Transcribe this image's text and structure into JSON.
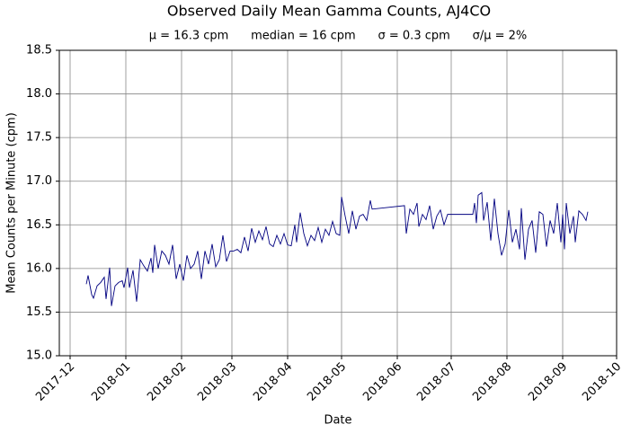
{
  "chart_data": {
    "type": "line",
    "title": "Observed Daily Mean Gamma Counts, AJ4CO",
    "subtitle": "μ = 16.3 cpm      median = 16 cpm      σ = 0.3 cpm      σ/μ = 2%",
    "xlabel": "Date",
    "ylabel": "Mean Counts per Minute (cpm)",
    "color": "#000080",
    "grid": true,
    "xlim": [
      "2017-11-25",
      "2018-10-01"
    ],
    "xticks": [
      "2017-12",
      "2018-01",
      "2018-02",
      "2018-03",
      "2018-04",
      "2018-05",
      "2018-06",
      "2018-07",
      "2018-08",
      "2018-09",
      "2018-10"
    ],
    "ylim": [
      15.0,
      18.5
    ],
    "yticks": [
      {
        "value": 15,
        "label": "15.0"
      },
      15.5,
      {
        "value": 16,
        "label": "16.0"
      },
      16.5,
      {
        "value": 17,
        "label": "17.0"
      },
      17.5,
      {
        "value": 18,
        "label": "18.0"
      },
      18.5
    ],
    "x": [
      "2017-12-10",
      "2017-12-11",
      "2017-12-13",
      "2017-12-14",
      "2017-12-16",
      "2017-12-18",
      "2017-12-20",
      "2017-12-21",
      "2017-12-23",
      "2017-12-24",
      "2017-12-26",
      "2017-12-28",
      "2017-12-30",
      "2017-12-31",
      "2018-01-02",
      "2018-01-03",
      "2018-01-05",
      "2018-01-07",
      "2018-01-09",
      "2018-01-11",
      "2018-01-13",
      "2018-01-15",
      "2018-01-16",
      "2018-01-17",
      "2018-01-19",
      "2018-01-21",
      "2018-01-23",
      "2018-01-25",
      "2018-01-27",
      "2018-01-29",
      "2018-01-31",
      "2018-02-02",
      "2018-02-04",
      "2018-02-06",
      "2018-02-08",
      "2018-02-10",
      "2018-02-12",
      "2018-02-14",
      "2018-02-16",
      "2018-02-18",
      "2018-02-20",
      "2018-02-22",
      "2018-02-24",
      "2018-02-26",
      "2018-02-28",
      "2018-03-02",
      "2018-03-04",
      "2018-03-06",
      "2018-03-08",
      "2018-03-10",
      "2018-03-12",
      "2018-03-14",
      "2018-03-16",
      "2018-03-18",
      "2018-03-20",
      "2018-03-22",
      "2018-03-24",
      "2018-03-26",
      "2018-03-28",
      "2018-03-30",
      "2018-04-01",
      "2018-04-03",
      "2018-04-05",
      "2018-04-06",
      "2018-04-08",
      "2018-04-10",
      "2018-04-12",
      "2018-04-14",
      "2018-04-16",
      "2018-04-18",
      "2018-04-20",
      "2018-04-22",
      "2018-04-24",
      "2018-04-26",
      "2018-04-28",
      "2018-04-30",
      "2018-05-01",
      "2018-05-03",
      "2018-05-05",
      "2018-05-07",
      "2018-05-09",
      "2018-05-11",
      "2018-05-13",
      "2018-05-15",
      "2018-05-17",
      "2018-05-18",
      "2018-06-05",
      "2018-06-06",
      "2018-06-08",
      "2018-06-10",
      "2018-06-12",
      "2018-06-13",
      "2018-06-15",
      "2018-06-17",
      "2018-06-19",
      "2018-06-21",
      "2018-06-23",
      "2018-06-25",
      "2018-06-27",
      "2018-06-29",
      "2018-07-13",
      "2018-07-14",
      "2018-07-15",
      "2018-07-16",
      "2018-07-18",
      "2018-07-19",
      "2018-07-21",
      "2018-07-23",
      "2018-07-25",
      "2018-07-27",
      "2018-07-29",
      "2018-07-31",
      "2018-08-02",
      "2018-08-04",
      "2018-08-06",
      "2018-08-08",
      "2018-08-09",
      "2018-08-11",
      "2018-08-13",
      "2018-08-15",
      "2018-08-17",
      "2018-08-19",
      "2018-08-21",
      "2018-08-23",
      "2018-08-25",
      "2018-08-27",
      "2018-08-29",
      "2018-08-31",
      "2018-09-01",
      "2018-09-02",
      "2018-09-03",
      "2018-09-05",
      "2018-09-07",
      "2018-09-08",
      "2018-09-10",
      "2018-09-12",
      "2018-09-14",
      "2018-09-15"
    ],
    "values": [
      15.82,
      15.92,
      15.7,
      15.66,
      15.8,
      15.84,
      15.9,
      15.65,
      16.01,
      15.57,
      15.8,
      15.84,
      15.86,
      15.78,
      16.01,
      15.78,
      15.98,
      15.62,
      16.1,
      16.03,
      15.97,
      16.12,
      15.95,
      16.27,
      16.0,
      16.2,
      16.15,
      16.05,
      16.27,
      15.88,
      16.05,
      15.86,
      16.15,
      16.0,
      16.05,
      16.2,
      15.88,
      16.2,
      16.05,
      16.28,
      16.02,
      16.1,
      16.38,
      16.08,
      16.2,
      16.2,
      16.22,
      16.18,
      16.36,
      16.2,
      16.46,
      16.3,
      16.43,
      16.33,
      16.48,
      16.28,
      16.25,
      16.38,
      16.28,
      16.4,
      16.27,
      16.26,
      16.5,
      16.3,
      16.64,
      16.4,
      16.26,
      16.38,
      16.32,
      16.47,
      16.3,
      16.45,
      16.38,
      16.54,
      16.4,
      16.38,
      16.82,
      16.6,
      16.4,
      16.66,
      16.45,
      16.6,
      16.62,
      16.55,
      16.78,
      16.68,
      16.72,
      16.4,
      16.68,
      16.62,
      16.75,
      16.48,
      16.62,
      16.56,
      16.72,
      16.45,
      16.6,
      16.67,
      16.5,
      16.62,
      16.62,
      16.75,
      16.52,
      16.84,
      16.87,
      16.55,
      16.76,
      16.32,
      16.8,
      16.4,
      16.15,
      16.28,
      16.67,
      16.3,
      16.45,
      16.22,
      16.69,
      16.1,
      16.45,
      16.55,
      16.18,
      16.65,
      16.62,
      16.25,
      16.55,
      16.4,
      16.75,
      16.3,
      16.62,
      16.22,
      16.75,
      16.4,
      16.6,
      16.3,
      16.66,
      16.62,
      16.55,
      16.65
    ]
  }
}
